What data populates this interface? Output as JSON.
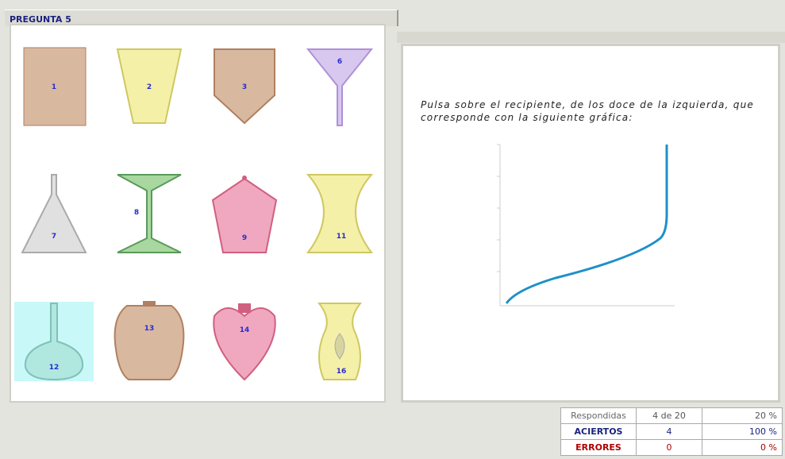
{
  "header": {
    "title": "PREGUNTA 5"
  },
  "containers": [
    {
      "label": "1"
    },
    {
      "label": "2"
    },
    {
      "label": "3"
    },
    {
      "label": "6"
    },
    {
      "label": "7"
    },
    {
      "label": "8"
    },
    {
      "label": "9"
    },
    {
      "label": "11"
    },
    {
      "label": "12"
    },
    {
      "label": "13"
    },
    {
      "label": "14"
    },
    {
      "label": "16"
    }
  ],
  "instruction": "Pulsa sobre el recipiente, de los doce de la izquierda, que corresponde con la siguiente gráfica:",
  "stats": {
    "rows": [
      [
        "Respondidas",
        "4 de 20",
        "20 %"
      ],
      [
        "ACIERTOS",
        "4",
        "100 %"
      ],
      [
        "ERRORES",
        "0",
        "0 %"
      ]
    ]
  }
}
